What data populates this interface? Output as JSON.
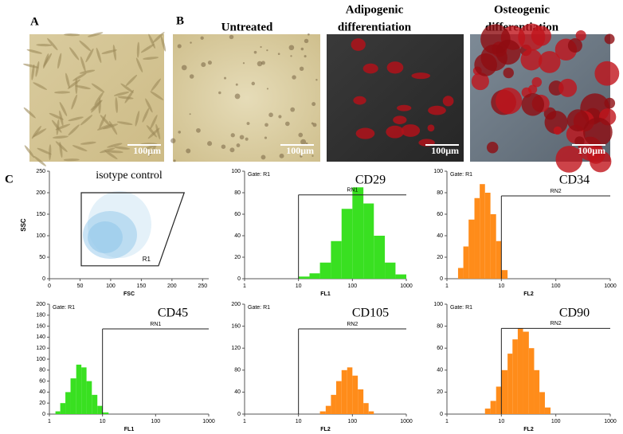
{
  "panel_labels": [
    "A",
    "B",
    "C"
  ],
  "images": [
    {
      "scale_bar": "100μm"
    },
    {
      "title": "Untreated",
      "scale_bar": "100μm"
    },
    {
      "title": [
        "Adipogenic",
        "differentiation"
      ],
      "scale_bar": "100μm"
    },
    {
      "title": [
        "Osteogenic",
        "differentiation"
      ],
      "scale_bar": "100μm"
    }
  ],
  "chart_data": [
    {
      "type": "scatter",
      "title": "isotype control",
      "xlabel": "FSC",
      "ylabel": "SSC",
      "color": "#3a9ad9",
      "xlim": [
        0,
        260
      ],
      "ylim": [
        0,
        250
      ],
      "xticks": [
        0,
        50,
        100,
        150,
        200,
        250
      ],
      "yticks": [
        0,
        50,
        100,
        150,
        200,
        250
      ],
      "gate_label": "R1",
      "gate": {
        "x": [
          52,
          220,
          178,
          52
        ],
        "y": [
          200,
          200,
          30,
          30
        ]
      }
    },
    {
      "type": "histogram",
      "title": "CD29",
      "gate_text": "Gate: R1",
      "marker": "RN1",
      "xlabel": "FL1",
      "color": "#39e021",
      "log_x": true,
      "xlim": [
        1,
        1000
      ],
      "xticks": [
        1,
        10,
        100,
        1000
      ],
      "ylim": [
        0,
        100
      ],
      "yticks": [
        0,
        20,
        40,
        60,
        80,
        100
      ],
      "marker_range": [
        10,
        1000
      ],
      "marker_level": 78,
      "bins": [
        10,
        16,
        25,
        40,
        63,
        100,
        160,
        250,
        400,
        630,
        1000
      ],
      "counts": [
        2,
        5,
        15,
        35,
        65,
        85,
        70,
        40,
        15,
        4
      ]
    },
    {
      "type": "histogram",
      "title": "CD34",
      "gate_text": "Gate: R1",
      "marker": "RN2",
      "xlabel": "FL2",
      "color": "#ff8c1a",
      "log_x": true,
      "xlim": [
        1,
        1000
      ],
      "xticks": [
        1,
        10,
        100,
        1000
      ],
      "ylim": [
        0,
        100
      ],
      "yticks": [
        0,
        20,
        40,
        60,
        80,
        100
      ],
      "marker_range": [
        10,
        1000
      ],
      "marker_level": 77,
      "bins": [
        1.6,
        2,
        2.5,
        3.2,
        4,
        5,
        6.3,
        8,
        10,
        13
      ],
      "counts": [
        10,
        30,
        55,
        75,
        88,
        80,
        60,
        35,
        8
      ]
    },
    {
      "type": "histogram",
      "title": "CD45",
      "gate_text": "Gate: R1",
      "marker": "RN1",
      "xlabel": "FL1",
      "color": "#39e021",
      "log_x": true,
      "xlim": [
        1,
        1000
      ],
      "xticks": [
        1,
        10,
        100,
        1000
      ],
      "ylim": [
        0,
        200
      ],
      "yticks": [
        0,
        20,
        40,
        60,
        80,
        100,
        120,
        140,
        160,
        180,
        200
      ],
      "marker_range": [
        10,
        1000
      ],
      "marker_level": 155,
      "bins": [
        1.3,
        1.6,
        2,
        2.5,
        3.2,
        4,
        5,
        6.3,
        8,
        10,
        13
      ],
      "counts": [
        5,
        20,
        40,
        65,
        90,
        85,
        60,
        35,
        15,
        3
      ]
    },
    {
      "type": "histogram",
      "title": "CD105",
      "gate_text": "Gate: R1",
      "marker": "RN2",
      "xlabel": "FL2",
      "color": "#ff8c1a",
      "log_x": true,
      "xlim": [
        1,
        1000
      ],
      "xticks": [
        1,
        10,
        100,
        1000
      ],
      "ylim": [
        0,
        200
      ],
      "yticks": [
        0,
        40,
        80,
        120,
        160,
        200
      ],
      "marker_range": [
        10,
        1000
      ],
      "marker_level": 155,
      "bins": [
        25,
        32,
        40,
        50,
        63,
        80,
        100,
        126,
        160,
        200,
        250
      ],
      "counts": [
        5,
        15,
        35,
        60,
        80,
        85,
        70,
        45,
        20,
        5
      ]
    },
    {
      "type": "histogram",
      "title": "CD90",
      "gate_text": "Gate: R1",
      "marker": "RN2",
      "xlabel": "FL2",
      "color": "#ff8c1a",
      "log_x": true,
      "xlim": [
        1,
        1000
      ],
      "xticks": [
        1,
        10,
        100,
        1000
      ],
      "ylim": [
        0,
        100
      ],
      "yticks": [
        0,
        20,
        40,
        60,
        80,
        100
      ],
      "marker_range": [
        10,
        1000
      ],
      "marker_level": 78,
      "bins": [
        5,
        6.3,
        8,
        10,
        13,
        16,
        20,
        25,
        32,
        40,
        50,
        63,
        80
      ],
      "counts": [
        5,
        12,
        25,
        40,
        55,
        68,
        78,
        75,
        60,
        40,
        20,
        6
      ]
    }
  ]
}
